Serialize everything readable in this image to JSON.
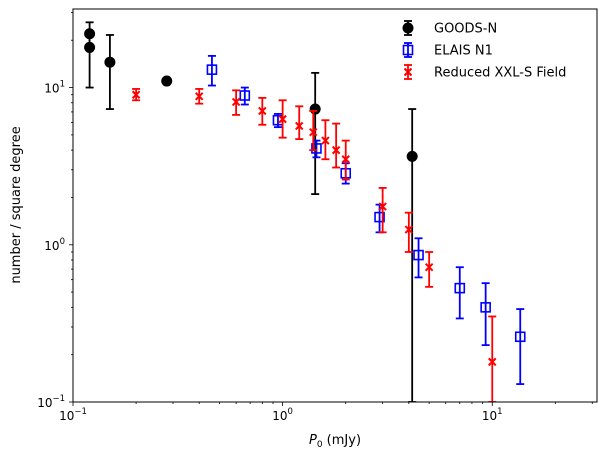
{
  "chart_data": {
    "type": "scatter",
    "xlabel": "P",
    "xlabel_sub": "0",
    "xlabel_unit": " (mJy)",
    "ylabel": "number / square degree",
    "xscale": "log",
    "yscale": "log",
    "xlim": [
      0.1,
      31.6
    ],
    "ylim": [
      0.1,
      31.6
    ],
    "x_ticks": [
      {
        "value": 0.1,
        "base": "10",
        "exp": "−1"
      },
      {
        "value": 1,
        "base": "10",
        "exp": "0"
      },
      {
        "value": 10,
        "base": "10",
        "exp": "1"
      }
    ],
    "y_ticks": [
      {
        "value": 0.1,
        "base": "10",
        "exp": "−1"
      },
      {
        "value": 1,
        "base": "10",
        "exp": "0"
      },
      {
        "value": 10,
        "base": "10",
        "exp": "1"
      }
    ],
    "legend_position": "top-right",
    "series": [
      {
        "name": "GOODS-N",
        "color": "#000000",
        "marker": "circle",
        "points": [
          {
            "x": 0.12,
            "y": 22,
            "ylo": 18,
            "yhi": 26
          },
          {
            "x": 0.12,
            "y": 18,
            "ylo": 10,
            "yhi": 22
          },
          {
            "x": 0.15,
            "y": 14.5,
            "ylo": 7.3,
            "yhi": 21.6
          },
          {
            "x": 0.28,
            "y": 11,
            "ylo": 11,
            "yhi": 11
          },
          {
            "x": 1.43,
            "y": 7.3,
            "ylo": 2.1,
            "yhi": 12.4
          },
          {
            "x": 4.15,
            "y": 3.65,
            "ylo": 0.1,
            "yhi": 7.3
          }
        ]
      },
      {
        "name": "ELAIS N1",
        "color": "#0000ff",
        "marker": "square",
        "points": [
          {
            "x": 0.46,
            "y": 13,
            "ylo": 10.3,
            "yhi": 15.9
          },
          {
            "x": 0.66,
            "y": 8.9,
            "ylo": 7.8,
            "yhi": 10.0
          },
          {
            "x": 0.95,
            "y": 6.2,
            "ylo": 5.6,
            "yhi": 6.8
          },
          {
            "x": 1.45,
            "y": 4.1,
            "ylo": 3.6,
            "yhi": 4.6
          },
          {
            "x": 2.0,
            "y": 2.85,
            "ylo": 2.45,
            "yhi": 3.3
          },
          {
            "x": 2.9,
            "y": 1.5,
            "ylo": 1.2,
            "yhi": 1.8
          },
          {
            "x": 4.45,
            "y": 0.86,
            "ylo": 0.62,
            "yhi": 1.1
          },
          {
            "x": 7.0,
            "y": 0.53,
            "ylo": 0.34,
            "yhi": 0.72
          },
          {
            "x": 9.3,
            "y": 0.4,
            "ylo": 0.23,
            "yhi": 0.57
          },
          {
            "x": 13.6,
            "y": 0.26,
            "ylo": 0.13,
            "yhi": 0.39
          }
        ]
      },
      {
        "name": "Reduced XXL-S Field",
        "color": "#ff0000",
        "marker": "x",
        "points": [
          {
            "x": 0.2,
            "y": 9.0,
            "ylo": 8.3,
            "yhi": 9.8
          },
          {
            "x": 0.4,
            "y": 8.8,
            "ylo": 7.9,
            "yhi": 9.8
          },
          {
            "x": 0.6,
            "y": 8.1,
            "ylo": 6.7,
            "yhi": 9.6
          },
          {
            "x": 0.8,
            "y": 7.1,
            "ylo": 5.8,
            "yhi": 8.6
          },
          {
            "x": 1.0,
            "y": 6.3,
            "ylo": 4.8,
            "yhi": 8.3
          },
          {
            "x": 1.2,
            "y": 5.7,
            "ylo": 4.7,
            "yhi": 7.6
          },
          {
            "x": 1.4,
            "y": 5.2,
            "ylo": 4.0,
            "yhi": 7.1
          },
          {
            "x": 1.6,
            "y": 4.6,
            "ylo": 3.5,
            "yhi": 6.2
          },
          {
            "x": 1.8,
            "y": 4.0,
            "ylo": 3.1,
            "yhi": 5.9
          },
          {
            "x": 2.0,
            "y": 3.5,
            "ylo": 2.6,
            "yhi": 4.6
          },
          {
            "x": 3.0,
            "y": 1.75,
            "ylo": 1.2,
            "yhi": 2.3
          },
          {
            "x": 4.0,
            "y": 1.25,
            "ylo": 0.9,
            "yhi": 1.6
          },
          {
            "x": 5.0,
            "y": 0.72,
            "ylo": 0.54,
            "yhi": 0.9
          },
          {
            "x": 10.0,
            "y": 0.18,
            "ylo": 0.1,
            "yhi": 0.35
          }
        ]
      }
    ]
  }
}
